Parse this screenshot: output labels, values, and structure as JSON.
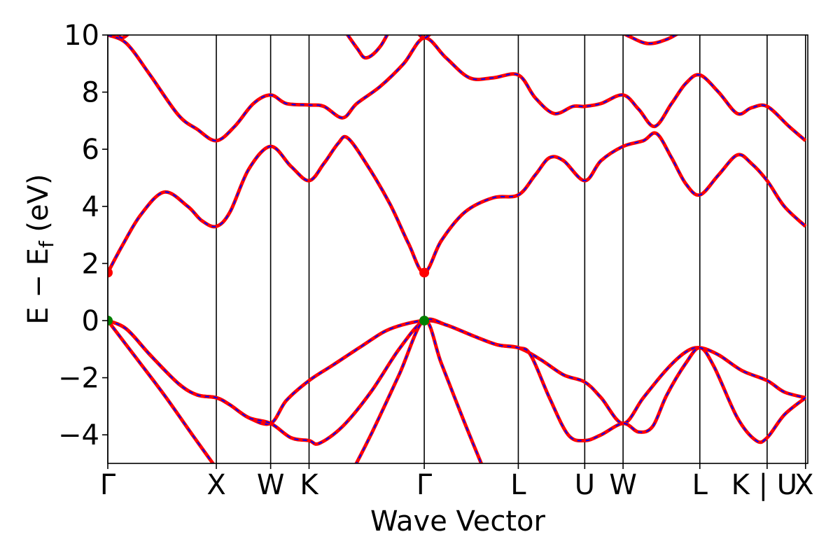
{
  "chart_data": {
    "type": "line",
    "title": "",
    "xlabel": "Wave Vector",
    "ylabel_parts": {
      "main": "E − E",
      "sub": "f",
      "unit": " (eV)"
    },
    "ylim": [
      -5,
      10
    ],
    "xlim": [
      0,
      7.45
    ],
    "yticks": [
      {
        "value": 10,
        "label": "10"
      },
      {
        "value": 8,
        "label": "8"
      },
      {
        "value": 6,
        "label": "6"
      },
      {
        "value": 4,
        "label": "4"
      },
      {
        "value": 2,
        "label": "2"
      },
      {
        "value": 0,
        "label": "0"
      },
      {
        "value": -2,
        "label": "−2"
      },
      {
        "value": -4,
        "label": "−4"
      }
    ],
    "kpoints": [
      {
        "x": 0.0,
        "label": "Γ"
      },
      {
        "x": 1.155,
        "label": "X"
      },
      {
        "x": 1.733,
        "label": "W"
      },
      {
        "x": 2.142,
        "label": "K"
      },
      {
        "x": 3.368,
        "label": "Γ"
      },
      {
        "x": 4.369,
        "label": "L"
      },
      {
        "x": 5.076,
        "label": "U"
      },
      {
        "x": 5.484,
        "label": "W"
      },
      {
        "x": 6.301,
        "label": "L"
      },
      {
        "x": 7.017,
        "label": "K | U"
      },
      {
        "x": 7.426,
        "label": "X"
      }
    ],
    "markers": [
      {
        "name": "vbm",
        "color": "#008000",
        "points": [
          [
            0.0,
            0.0
          ],
          [
            3.368,
            0.0
          ]
        ]
      },
      {
        "name": "cbm",
        "color": "#ff0000",
        "points": [
          [
            0.0,
            1.68
          ],
          [
            3.368,
            1.68
          ]
        ]
      }
    ],
    "colors": {
      "line": "#ff0000",
      "dash": "#0000ff"
    },
    "bands": [
      [
        [
          0,
          10
        ],
        [
          0.2,
          9.7
        ],
        [
          0.45,
          8.6
        ],
        [
          0.75,
          7.2
        ],
        [
          0.95,
          6.7
        ],
        [
          1.155,
          6.3
        ],
        [
          1.35,
          6.8
        ],
        [
          1.55,
          7.6
        ],
        [
          1.733,
          7.9
        ],
        [
          1.9,
          7.6
        ],
        [
          2.142,
          7.55
        ],
        [
          2.3,
          7.5
        ],
        [
          2.5,
          7.1
        ],
        [
          2.65,
          7.6
        ],
        [
          2.9,
          8.2
        ],
        [
          3.15,
          9.0
        ],
        [
          3.368,
          9.9
        ],
        [
          3.6,
          9.2
        ],
        [
          3.85,
          8.5
        ],
        [
          4.1,
          8.5
        ],
        [
          4.369,
          8.6
        ],
        [
          4.55,
          7.8
        ],
        [
          4.75,
          7.25
        ],
        [
          4.95,
          7.5
        ],
        [
          5.076,
          7.5
        ],
        [
          5.25,
          7.6
        ],
        [
          5.484,
          7.9
        ],
        [
          5.65,
          7.4
        ],
        [
          5.82,
          6.8
        ],
        [
          6.0,
          7.6
        ],
        [
          6.15,
          8.3
        ],
        [
          6.301,
          8.6
        ],
        [
          6.5,
          8.0
        ],
        [
          6.7,
          7.25
        ],
        [
          6.85,
          7.45
        ],
        [
          7.017,
          7.5
        ],
        [
          7.25,
          6.8
        ],
        [
          7.426,
          6.3
        ]
      ],
      [
        [
          0,
          1.68
        ],
        [
          0.15,
          2.6
        ],
        [
          0.35,
          3.7
        ],
        [
          0.6,
          4.5
        ],
        [
          0.85,
          4.0
        ],
        [
          1.0,
          3.5
        ],
        [
          1.155,
          3.3
        ],
        [
          1.3,
          3.8
        ],
        [
          1.5,
          5.3
        ],
        [
          1.733,
          6.1
        ],
        [
          1.95,
          5.4
        ],
        [
          2.142,
          4.9
        ],
        [
          2.3,
          5.5
        ],
        [
          2.45,
          6.2
        ],
        [
          2.55,
          6.4
        ],
        [
          2.75,
          5.5
        ],
        [
          3.0,
          4.1
        ],
        [
          3.2,
          2.7
        ],
        [
          3.368,
          1.68
        ],
        [
          3.55,
          2.8
        ],
        [
          3.8,
          3.8
        ],
        [
          4.1,
          4.3
        ],
        [
          4.369,
          4.4
        ],
        [
          4.55,
          5.1
        ],
        [
          4.7,
          5.7
        ],
        [
          4.85,
          5.6
        ],
        [
          5.076,
          4.9
        ],
        [
          5.25,
          5.6
        ],
        [
          5.484,
          6.1
        ],
        [
          5.7,
          6.3
        ],
        [
          5.84,
          6.55
        ],
        [
          6.0,
          5.7
        ],
        [
          6.15,
          4.8
        ],
        [
          6.301,
          4.4
        ],
        [
          6.5,
          5.1
        ],
        [
          6.7,
          5.8
        ],
        [
          6.85,
          5.5
        ],
        [
          7.017,
          4.9
        ],
        [
          7.2,
          4.0
        ],
        [
          7.426,
          3.3
        ]
      ],
      [
        [
          0,
          0
        ],
        [
          0.2,
          -0.3
        ],
        [
          0.45,
          -1.2
        ],
        [
          0.75,
          -2.2
        ],
        [
          0.95,
          -2.6
        ],
        [
          1.155,
          -2.7
        ],
        [
          1.3,
          -2.95
        ],
        [
          1.5,
          -3.4
        ],
        [
          1.733,
          -3.6
        ],
        [
          1.9,
          -2.8
        ],
        [
          2.142,
          -2.1
        ],
        [
          2.4,
          -1.55
        ],
        [
          2.7,
          -0.9
        ],
        [
          3.0,
          -0.3
        ],
        [
          3.368,
          0
        ],
        [
          3.6,
          -0.15
        ],
        [
          3.9,
          -0.55
        ],
        [
          4.15,
          -0.85
        ],
        [
          4.369,
          -0.95
        ],
        [
          4.6,
          -1.35
        ],
        [
          4.85,
          -1.9
        ],
        [
          5.076,
          -2.15
        ],
        [
          5.25,
          -2.7
        ],
        [
          5.484,
          -3.6
        ],
        [
          5.7,
          -2.7
        ],
        [
          5.95,
          -1.7
        ],
        [
          6.15,
          -1.1
        ],
        [
          6.301,
          -0.95
        ],
        [
          6.5,
          -1.2
        ],
        [
          6.75,
          -1.75
        ],
        [
          7.017,
          -2.1
        ],
        [
          7.2,
          -2.5
        ],
        [
          7.426,
          -2.7
        ]
      ],
      [
        [
          0,
          0
        ],
        [
          0.2,
          -0.3
        ],
        [
          0.45,
          -1.2
        ],
        [
          0.75,
          -2.2
        ],
        [
          0.95,
          -2.6
        ],
        [
          1.155,
          -2.7
        ],
        [
          1.3,
          -2.95
        ],
        [
          1.5,
          -3.4
        ],
        [
          1.733,
          -3.6
        ],
        [
          1.95,
          -4.1
        ],
        [
          2.142,
          -4.2
        ],
        [
          2.25,
          -4.3
        ],
        [
          2.5,
          -3.7
        ],
        [
          2.8,
          -2.5
        ],
        [
          3.1,
          -1.0
        ],
        [
          3.368,
          0
        ],
        [
          3.6,
          -0.15
        ],
        [
          3.9,
          -0.55
        ],
        [
          4.15,
          -0.85
        ],
        [
          4.369,
          -0.95
        ],
        [
          4.5,
          -1.2
        ],
        [
          4.7,
          -2.7
        ],
        [
          4.9,
          -4.0
        ],
        [
          5.076,
          -4.2
        ],
        [
          5.25,
          -4.0
        ],
        [
          5.484,
          -3.6
        ],
        [
          5.65,
          -3.9
        ],
        [
          5.8,
          -3.7
        ],
        [
          5.95,
          -2.6
        ],
        [
          6.15,
          -1.5
        ],
        [
          6.301,
          -0.95
        ],
        [
          6.45,
          -1.6
        ],
        [
          6.7,
          -3.4
        ],
        [
          6.9,
          -4.2
        ],
        [
          7.017,
          -4.1
        ],
        [
          7.2,
          -3.3
        ],
        [
          7.426,
          -2.7
        ]
      ],
      [
        [
          0,
          0
        ],
        [
          0.3,
          -1.3
        ],
        [
          0.6,
          -2.6
        ],
        [
          0.9,
          -4.0
        ],
        [
          1.25,
          -5.6
        ]
      ],
      [
        [
          2.55,
          -5.6
        ],
        [
          2.8,
          -4.0
        ],
        [
          3.1,
          -1.9
        ],
        [
          3.368,
          0
        ],
        [
          3.55,
          -1.5
        ],
        [
          3.8,
          -3.6
        ],
        [
          4.05,
          -5.6
        ]
      ]
    ],
    "top_fragments": [
      [
        [
          0.05,
          10.5
        ],
        [
          0.15,
          9.9
        ],
        [
          0.35,
          10.5
        ]
      ],
      [
        [
          2.45,
          10.5
        ],
        [
          2.65,
          9.55
        ],
        [
          2.75,
          9.2
        ],
        [
          2.9,
          9.6
        ],
        [
          3.05,
          10.5
        ]
      ],
      [
        [
          3.25,
          10.3
        ],
        [
          3.368,
          9.9
        ],
        [
          3.5,
          10.3
        ]
      ],
      [
        [
          5.35,
          10.3
        ],
        [
          5.55,
          9.95
        ],
        [
          5.75,
          9.7
        ],
        [
          5.95,
          9.85
        ],
        [
          6.15,
          10.2
        ],
        [
          6.4,
          10.6
        ]
      ]
    ]
  }
}
